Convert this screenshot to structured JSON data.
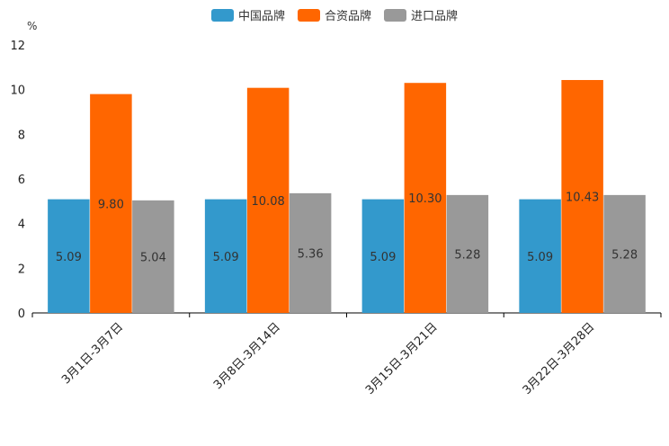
{
  "chart_data": {
    "type": "bar",
    "unit": "%",
    "categories": [
      "3月1日-3月7日",
      "3月8日-3月14日",
      "3月15日-3月21日",
      "3月22日-3月28日"
    ],
    "series": [
      {
        "name": "中国品牌",
        "color": "#3399cc",
        "values": [
          5.09,
          5.09,
          5.09,
          5.09
        ],
        "labels": [
          "5.09",
          "5.09",
          "5.09",
          "5.09"
        ]
      },
      {
        "name": "合资品牌",
        "color": "#ff6600",
        "values": [
          9.8,
          10.08,
          10.3,
          10.43
        ],
        "labels": [
          "9.80",
          "10.08",
          "10.30",
          "10.43"
        ]
      },
      {
        "name": "进口品牌",
        "color": "#999999",
        "values": [
          5.04,
          5.36,
          5.28,
          5.28
        ],
        "labels": [
          "5.04",
          "5.36",
          "5.28",
          "5.28"
        ]
      }
    ],
    "ylim": [
      0,
      12
    ],
    "yticks": [
      0,
      2,
      4,
      6,
      8,
      10,
      12
    ],
    "grid": false,
    "legend_position": "top-center"
  }
}
